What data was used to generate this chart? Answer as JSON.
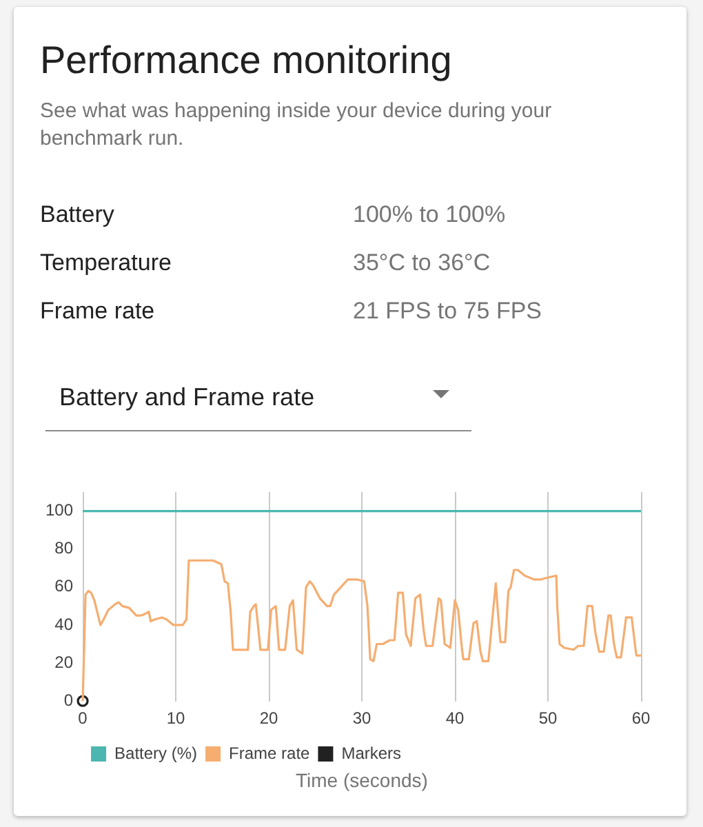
{
  "chart_data": [
    {
      "type": "other",
      "title": "Performance monitoring",
      "subtitle": "See what was happening inside your device during your benchmark run.",
      "annotations": [
        "Battery",
        "100% to 100%",
        "Temperature",
        "35°C to 36°C",
        "Frame rate",
        "21 FPS to 75 FPS"
      ]
    },
    {
      "type": "line",
      "title": "Battery and Frame rate",
      "xlabel": "Time (seconds)",
      "xlim": [
        0,
        60
      ],
      "xticks": [
        0,
        10,
        20,
        30,
        40,
        50,
        60
      ],
      "ylim": [
        0,
        110
      ],
      "yticks": [
        0,
        20,
        40,
        60,
        80,
        100
      ],
      "grid": "x",
      "legend": "bottom",
      "marker": "none",
      "series": [
        {
          "name": "Battery (%)",
          "color": "#4db6b0",
          "x": [
            0,
            60
          ],
          "values": [
            100,
            100
          ]
        },
        {
          "name": "Frame rate",
          "color": "#f5ad70",
          "x": [
            0,
            0.3,
            0.6,
            0.9,
            1.25,
            1.6,
            1.9,
            2.25,
            2.75,
            3.5,
            3.85,
            4.25,
            5,
            5.75,
            6.25,
            6.75,
            7.1,
            7.3,
            7.75,
            8.5,
            9,
            9.75,
            10.75,
            11.15,
            11.4,
            12,
            13,
            14,
            14.9,
            15.25,
            15.6,
            15.9,
            16.15,
            17,
            17.75,
            18,
            18.4,
            18.6,
            19.1,
            19.9,
            20.25,
            20.75,
            21.1,
            21.75,
            22.25,
            22.6,
            23,
            23.6,
            24,
            24.4,
            24.75,
            25.5,
            26.25,
            26.6,
            27,
            27.75,
            28.5,
            29.5,
            30.25,
            30.6,
            30.9,
            31.25,
            31.6,
            32.25,
            33,
            33.5,
            33.9,
            34.4,
            34.75,
            35.25,
            35.75,
            36.25,
            36.65,
            36.9,
            37.6,
            38.25,
            38.5,
            38.9,
            39.5,
            40,
            40.35,
            40.75,
            40.9,
            41.5,
            42,
            42.35,
            42.75,
            43,
            43.6,
            44,
            44.4,
            44.65,
            44.9,
            45.4,
            45.75,
            46,
            46.35,
            46.75,
            47.5,
            48.5,
            49.25,
            50,
            50.9,
            51,
            51.25,
            51.75,
            52.75,
            53.25,
            53.85,
            54.25,
            54.75,
            55.1,
            55.5,
            56,
            56.5,
            56.75,
            57.1,
            57.4,
            57.85,
            58.4,
            59,
            59.5,
            60
          ],
          "values": [
            0,
            56,
            58,
            57,
            53,
            46,
            40,
            43,
            48,
            51,
            52,
            50,
            49,
            45,
            45,
            46,
            47,
            42,
            43,
            44,
            43,
            40,
            40,
            43,
            74,
            74,
            74,
            74,
            72,
            63,
            62,
            47,
            27,
            27,
            27,
            47,
            50,
            51,
            27,
            27,
            48,
            50,
            27,
            27,
            50,
            53,
            27,
            25,
            60,
            63,
            61,
            54,
            50,
            50,
            56,
            60,
            64,
            64,
            63,
            50,
            22,
            21,
            30,
            30,
            32,
            32,
            57,
            57,
            35,
            29,
            54,
            56,
            37,
            29,
            29,
            54,
            53,
            30,
            28,
            53,
            48,
            28,
            22,
            22,
            41,
            42,
            26,
            21,
            21,
            42,
            62,
            45,
            31,
            31,
            58,
            60,
            69,
            69,
            66,
            64,
            64,
            65,
            66,
            50,
            30,
            28,
            27,
            29,
            29,
            50,
            50,
            36,
            26,
            26,
            45,
            45,
            30,
            23,
            23,
            44,
            44,
            24,
            24
          ]
        },
        {
          "name": "Markers",
          "type": "scatter",
          "marker": "circle",
          "color": "#212121",
          "x": [
            0
          ],
          "values": [
            0
          ]
        }
      ]
    }
  ]
}
